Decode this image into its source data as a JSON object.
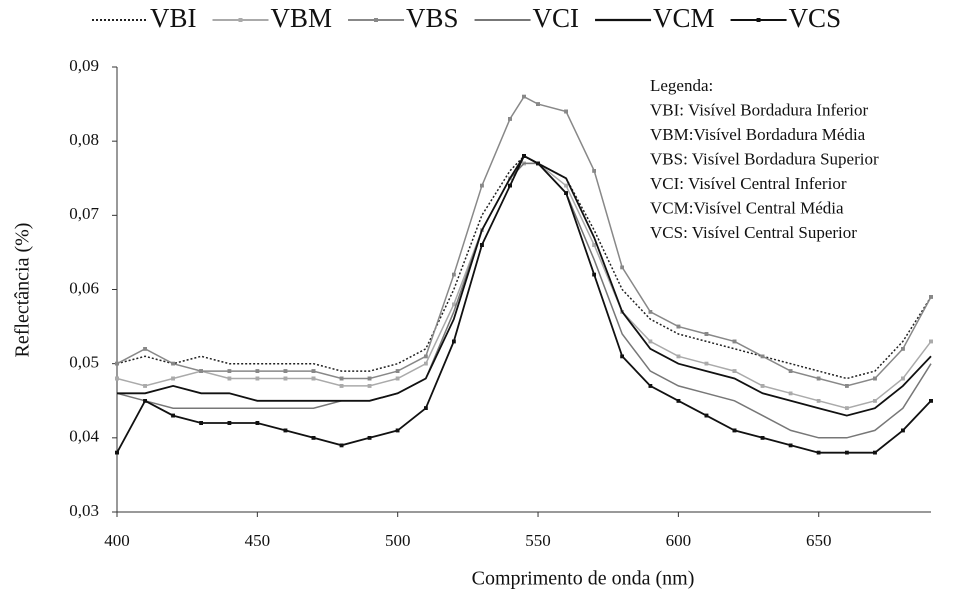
{
  "chart_data": {
    "type": "line",
    "xlabel": "Comprimento de onda (nm)",
    "ylabel": "Reflectância (%)",
    "annotations": [
      "Legenda:",
      "VBI:  Visível Bordadura Inferior",
      "VBM:Visível Bordadura Média",
      "VBS: Visível Bordadura Superior",
      "VCI:  Visível Central Inferior",
      "VCM:Visível Central Média",
      "VCS: Visível Central Superior"
    ],
    "x": [
      400,
      410,
      420,
      430,
      440,
      450,
      460,
      470,
      480,
      490,
      500,
      510,
      520,
      530,
      540,
      545,
      550,
      560,
      570,
      580,
      590,
      600,
      610,
      620,
      630,
      640,
      650,
      660,
      670,
      680,
      690
    ],
    "series": [
      {
        "name": "VBI",
        "color": "#222222",
        "dash": true,
        "marker": false,
        "values": [
          0.05,
          0.051,
          0.05,
          0.051,
          0.05,
          0.05,
          0.05,
          0.05,
          0.049,
          0.049,
          0.05,
          0.052,
          0.06,
          0.07,
          0.076,
          0.078,
          0.077,
          0.075,
          0.068,
          0.06,
          0.056,
          0.054,
          0.053,
          0.052,
          0.051,
          0.05,
          0.049,
          0.048,
          0.049,
          0.053,
          0.059
        ]
      },
      {
        "name": "VBM",
        "color": "#aaaaaa",
        "dash": false,
        "marker": true,
        "values": [
          0.048,
          0.047,
          0.048,
          0.049,
          0.048,
          0.048,
          0.048,
          0.048,
          0.047,
          0.047,
          0.048,
          0.05,
          0.058,
          0.068,
          0.075,
          0.077,
          0.077,
          0.074,
          0.066,
          0.057,
          0.053,
          0.051,
          0.05,
          0.049,
          0.047,
          0.046,
          0.045,
          0.044,
          0.045,
          0.048,
          0.053
        ]
      },
      {
        "name": "VBS",
        "color": "#888888",
        "dash": false,
        "marker": true,
        "values": [
          0.05,
          0.052,
          0.05,
          0.049,
          0.049,
          0.049,
          0.049,
          0.049,
          0.048,
          0.048,
          0.049,
          0.051,
          0.062,
          0.074,
          0.083,
          0.086,
          0.085,
          0.084,
          0.076,
          0.063,
          0.057,
          0.055,
          0.054,
          0.053,
          0.051,
          0.049,
          0.048,
          0.047,
          0.048,
          0.052,
          0.059
        ]
      },
      {
        "name": "VCI",
        "color": "#777777",
        "dash": false,
        "marker": false,
        "values": [
          0.046,
          0.045,
          0.044,
          0.044,
          0.044,
          0.044,
          0.044,
          0.044,
          0.045,
          0.045,
          0.046,
          0.048,
          0.057,
          0.068,
          0.075,
          0.077,
          0.077,
          0.073,
          0.064,
          0.054,
          0.049,
          0.047,
          0.046,
          0.045,
          0.043,
          0.041,
          0.04,
          0.04,
          0.041,
          0.044,
          0.05
        ]
      },
      {
        "name": "VCM",
        "color": "#111111",
        "dash": false,
        "marker": false,
        "values": [
          0.046,
          0.046,
          0.047,
          0.046,
          0.046,
          0.045,
          0.045,
          0.045,
          0.045,
          0.045,
          0.046,
          0.048,
          0.056,
          0.068,
          0.075,
          0.078,
          0.077,
          0.075,
          0.067,
          0.057,
          0.052,
          0.05,
          0.049,
          0.048,
          0.046,
          0.045,
          0.044,
          0.043,
          0.044,
          0.047,
          0.051
        ]
      },
      {
        "name": "VCS",
        "color": "#111111",
        "dash": false,
        "marker": true,
        "values": [
          0.038,
          0.045,
          0.043,
          0.042,
          0.042,
          0.042,
          0.041,
          0.04,
          0.039,
          0.04,
          0.041,
          0.044,
          0.053,
          0.066,
          0.074,
          0.078,
          0.077,
          0.073,
          0.062,
          0.051,
          0.047,
          0.045,
          0.043,
          0.041,
          0.04,
          0.039,
          0.038,
          0.038,
          0.038,
          0.041,
          0.045
        ]
      }
    ],
    "xlim": [
      400,
      690
    ],
    "ylim": [
      0.03,
      0.09
    ],
    "xticks": [
      400,
      450,
      500,
      550,
      600,
      650
    ],
    "yticks": [
      {
        "value": 0.03,
        "label": "0,03"
      },
      {
        "value": 0.04,
        "label": "0,04"
      },
      {
        "value": 0.05,
        "label": "0,05"
      },
      {
        "value": 0.06,
        "label": "0,06"
      },
      {
        "value": 0.07,
        "label": "0,07"
      },
      {
        "value": 0.08,
        "label": "0,08"
      },
      {
        "value": 0.09,
        "label": "0,09"
      }
    ],
    "grid": false,
    "legend": "top"
  }
}
